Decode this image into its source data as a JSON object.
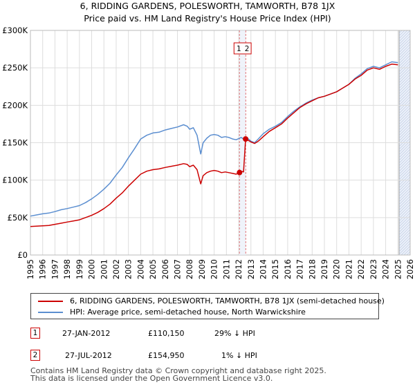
{
  "title_line1": "6, RIDDING GARDENS, POLESWORTH, TAMWORTH, B78 1JX",
  "title_line2": "Price paid vs. HM Land Registry's House Price Index (HPI)",
  "chart_data": {
    "type": "line",
    "title": "6, RIDDING GARDENS, POLESWORTH, TAMWORTH, B78 1JX — Price paid vs. HM Land Registry's House Price Index (HPI)",
    "xlabel": "",
    "ylabel": "",
    "xlim": [
      1995,
      2026
    ],
    "ylim": [
      0,
      300000
    ],
    "x_ticks": [
      "1995",
      "1996",
      "1997",
      "1998",
      "1999",
      "2000",
      "2001",
      "2002",
      "2003",
      "2004",
      "2005",
      "2006",
      "2007",
      "2008",
      "2009",
      "2010",
      "2011",
      "2012",
      "2013",
      "2014",
      "2015",
      "2016",
      "2017",
      "2018",
      "2019",
      "2020",
      "2021",
      "2022",
      "2023",
      "2024",
      "2025",
      "2026"
    ],
    "y_ticks": [
      {
        "value": 0,
        "label": "£0"
      },
      {
        "value": 50000,
        "label": "£50K"
      },
      {
        "value": 100000,
        "label": "£100K"
      },
      {
        "value": 150000,
        "label": "£150K"
      },
      {
        "value": 200000,
        "label": "£200K"
      },
      {
        "value": 250000,
        "label": "£250K"
      },
      {
        "value": 300000,
        "label": "£300K"
      }
    ],
    "grid": true,
    "future_shade_from": 2025.1,
    "series": [
      {
        "name": "6, RIDDING GARDENS, POLESWORTH, TAMWORTH, B78 1JX (semi-detached house)",
        "color": "#cc0000",
        "x": [
          1995.0,
          1995.5,
          1996.0,
          1996.5,
          1997.0,
          1997.5,
          1998.0,
          1998.5,
          1999.0,
          1999.5,
          2000.0,
          2000.5,
          2001.0,
          2001.5,
          2002.0,
          2002.5,
          2003.0,
          2003.5,
          2004.0,
          2004.5,
          2005.0,
          2005.5,
          2006.0,
          2006.5,
          2007.0,
          2007.5,
          2007.8,
          2008.0,
          2008.3,
          2008.6,
          2008.9,
          2009.1,
          2009.4,
          2009.7,
          2010.0,
          2010.3,
          2010.6,
          2010.9,
          2011.2,
          2011.5,
          2011.8,
          2012.07,
          2012.2,
          2012.4,
          2012.567,
          2012.8,
          2013.0,
          2013.3,
          2013.6,
          2014.0,
          2014.5,
          2015.0,
          2015.5,
          2016.0,
          2016.5,
          2017.0,
          2017.5,
          2018.0,
          2018.5,
          2019.0,
          2019.5,
          2020.0,
          2020.5,
          2021.0,
          2021.5,
          2022.0,
          2022.5,
          2023.0,
          2023.5,
          2024.0,
          2024.5,
          2025.0
        ],
        "values": [
          38000,
          38500,
          39000,
          39500,
          41000,
          42500,
          44000,
          45500,
          47000,
          50000,
          53000,
          57000,
          62000,
          68000,
          76000,
          83000,
          92000,
          100000,
          108000,
          112000,
          114000,
          115000,
          117000,
          118500,
          120000,
          122000,
          121000,
          118000,
          120000,
          114000,
          95000,
          106000,
          110000,
          112000,
          113000,
          112000,
          110000,
          111000,
          110000,
          109000,
          108000,
          110150,
          112000,
          111000,
          154950,
          153000,
          151000,
          149000,
          152000,
          158000,
          165000,
          170000,
          175000,
          183000,
          190000,
          197000,
          202000,
          206000,
          210000,
          212000,
          215000,
          218000,
          223000,
          228000,
          235000,
          240000,
          247000,
          250000,
          248000,
          252000,
          255000,
          254000
        ]
      },
      {
        "name": "HPI: Average price, semi-detached house, North Warwickshire",
        "color": "#5b8ed0",
        "x": [
          1995.0,
          1995.5,
          1996.0,
          1996.5,
          1997.0,
          1997.5,
          1998.0,
          1998.5,
          1999.0,
          1999.5,
          2000.0,
          2000.5,
          2001.0,
          2001.5,
          2002.0,
          2002.5,
          2003.0,
          2003.5,
          2004.0,
          2004.5,
          2005.0,
          2005.5,
          2006.0,
          2006.5,
          2007.0,
          2007.5,
          2007.8,
          2008.0,
          2008.3,
          2008.6,
          2008.9,
          2009.1,
          2009.4,
          2009.7,
          2010.0,
          2010.3,
          2010.6,
          2010.9,
          2011.2,
          2011.5,
          2011.8,
          2012.07,
          2012.2,
          2012.4,
          2012.567,
          2012.8,
          2013.0,
          2013.3,
          2013.6,
          2014.0,
          2014.5,
          2015.0,
          2015.5,
          2016.0,
          2016.5,
          2017.0,
          2017.5,
          2018.0,
          2018.5,
          2019.0,
          2019.5,
          2020.0,
          2020.5,
          2021.0,
          2021.5,
          2022.0,
          2022.5,
          2023.0,
          2023.5,
          2024.0,
          2024.5,
          2025.0
        ],
        "values": [
          52000,
          53500,
          55000,
          56000,
          58000,
          60500,
          62000,
          64000,
          66000,
          70000,
          75000,
          81000,
          88000,
          96000,
          107000,
          117000,
          130000,
          142000,
          155000,
          160000,
          163000,
          164000,
          167000,
          169000,
          171000,
          174000,
          172000,
          168000,
          170000,
          160000,
          135000,
          150000,
          156000,
          160000,
          161000,
          160000,
          157000,
          158000,
          157000,
          155000,
          154000,
          156000,
          157000,
          155000,
          157000,
          155000,
          152000,
          150000,
          155000,
          162000,
          168000,
          172000,
          177000,
          185000,
          192000,
          198000,
          203000,
          207000,
          210000,
          212000,
          215000,
          218000,
          223000,
          228000,
          236000,
          242000,
          249000,
          252000,
          250000,
          254000,
          258000,
          257000
        ]
      }
    ],
    "markers": [
      {
        "label": "1",
        "x": 2012.07,
        "value": 110150
      },
      {
        "label": "2",
        "x": 2012.567,
        "value": 154950
      }
    ]
  },
  "legend": {
    "property_label": "6, RIDDING GARDENS, POLESWORTH, TAMWORTH, B78 1JX (semi-detached house)",
    "hpi_label": "HPI: Average price, semi-detached house, North Warwickshire"
  },
  "transactions": [
    {
      "num": "1",
      "date": "27-JAN-2012",
      "price": "£110,150",
      "hpi": "29% ↓ HPI"
    },
    {
      "num": "2",
      "date": "27-JUL-2012",
      "price": "£154,950",
      "hpi": "1% ↓ HPI"
    }
  ],
  "footer": {
    "line1": "Contains HM Land Registry data © Crown copyright and database right 2025.",
    "line2": "This data is licensed under the Open Government Licence v3.0."
  },
  "colors": {
    "property": "#cc0000",
    "hpi": "#5b8ed0",
    "marker_line": "#cc0000",
    "shade": "#dde6f5",
    "grid": "#dddddd"
  }
}
